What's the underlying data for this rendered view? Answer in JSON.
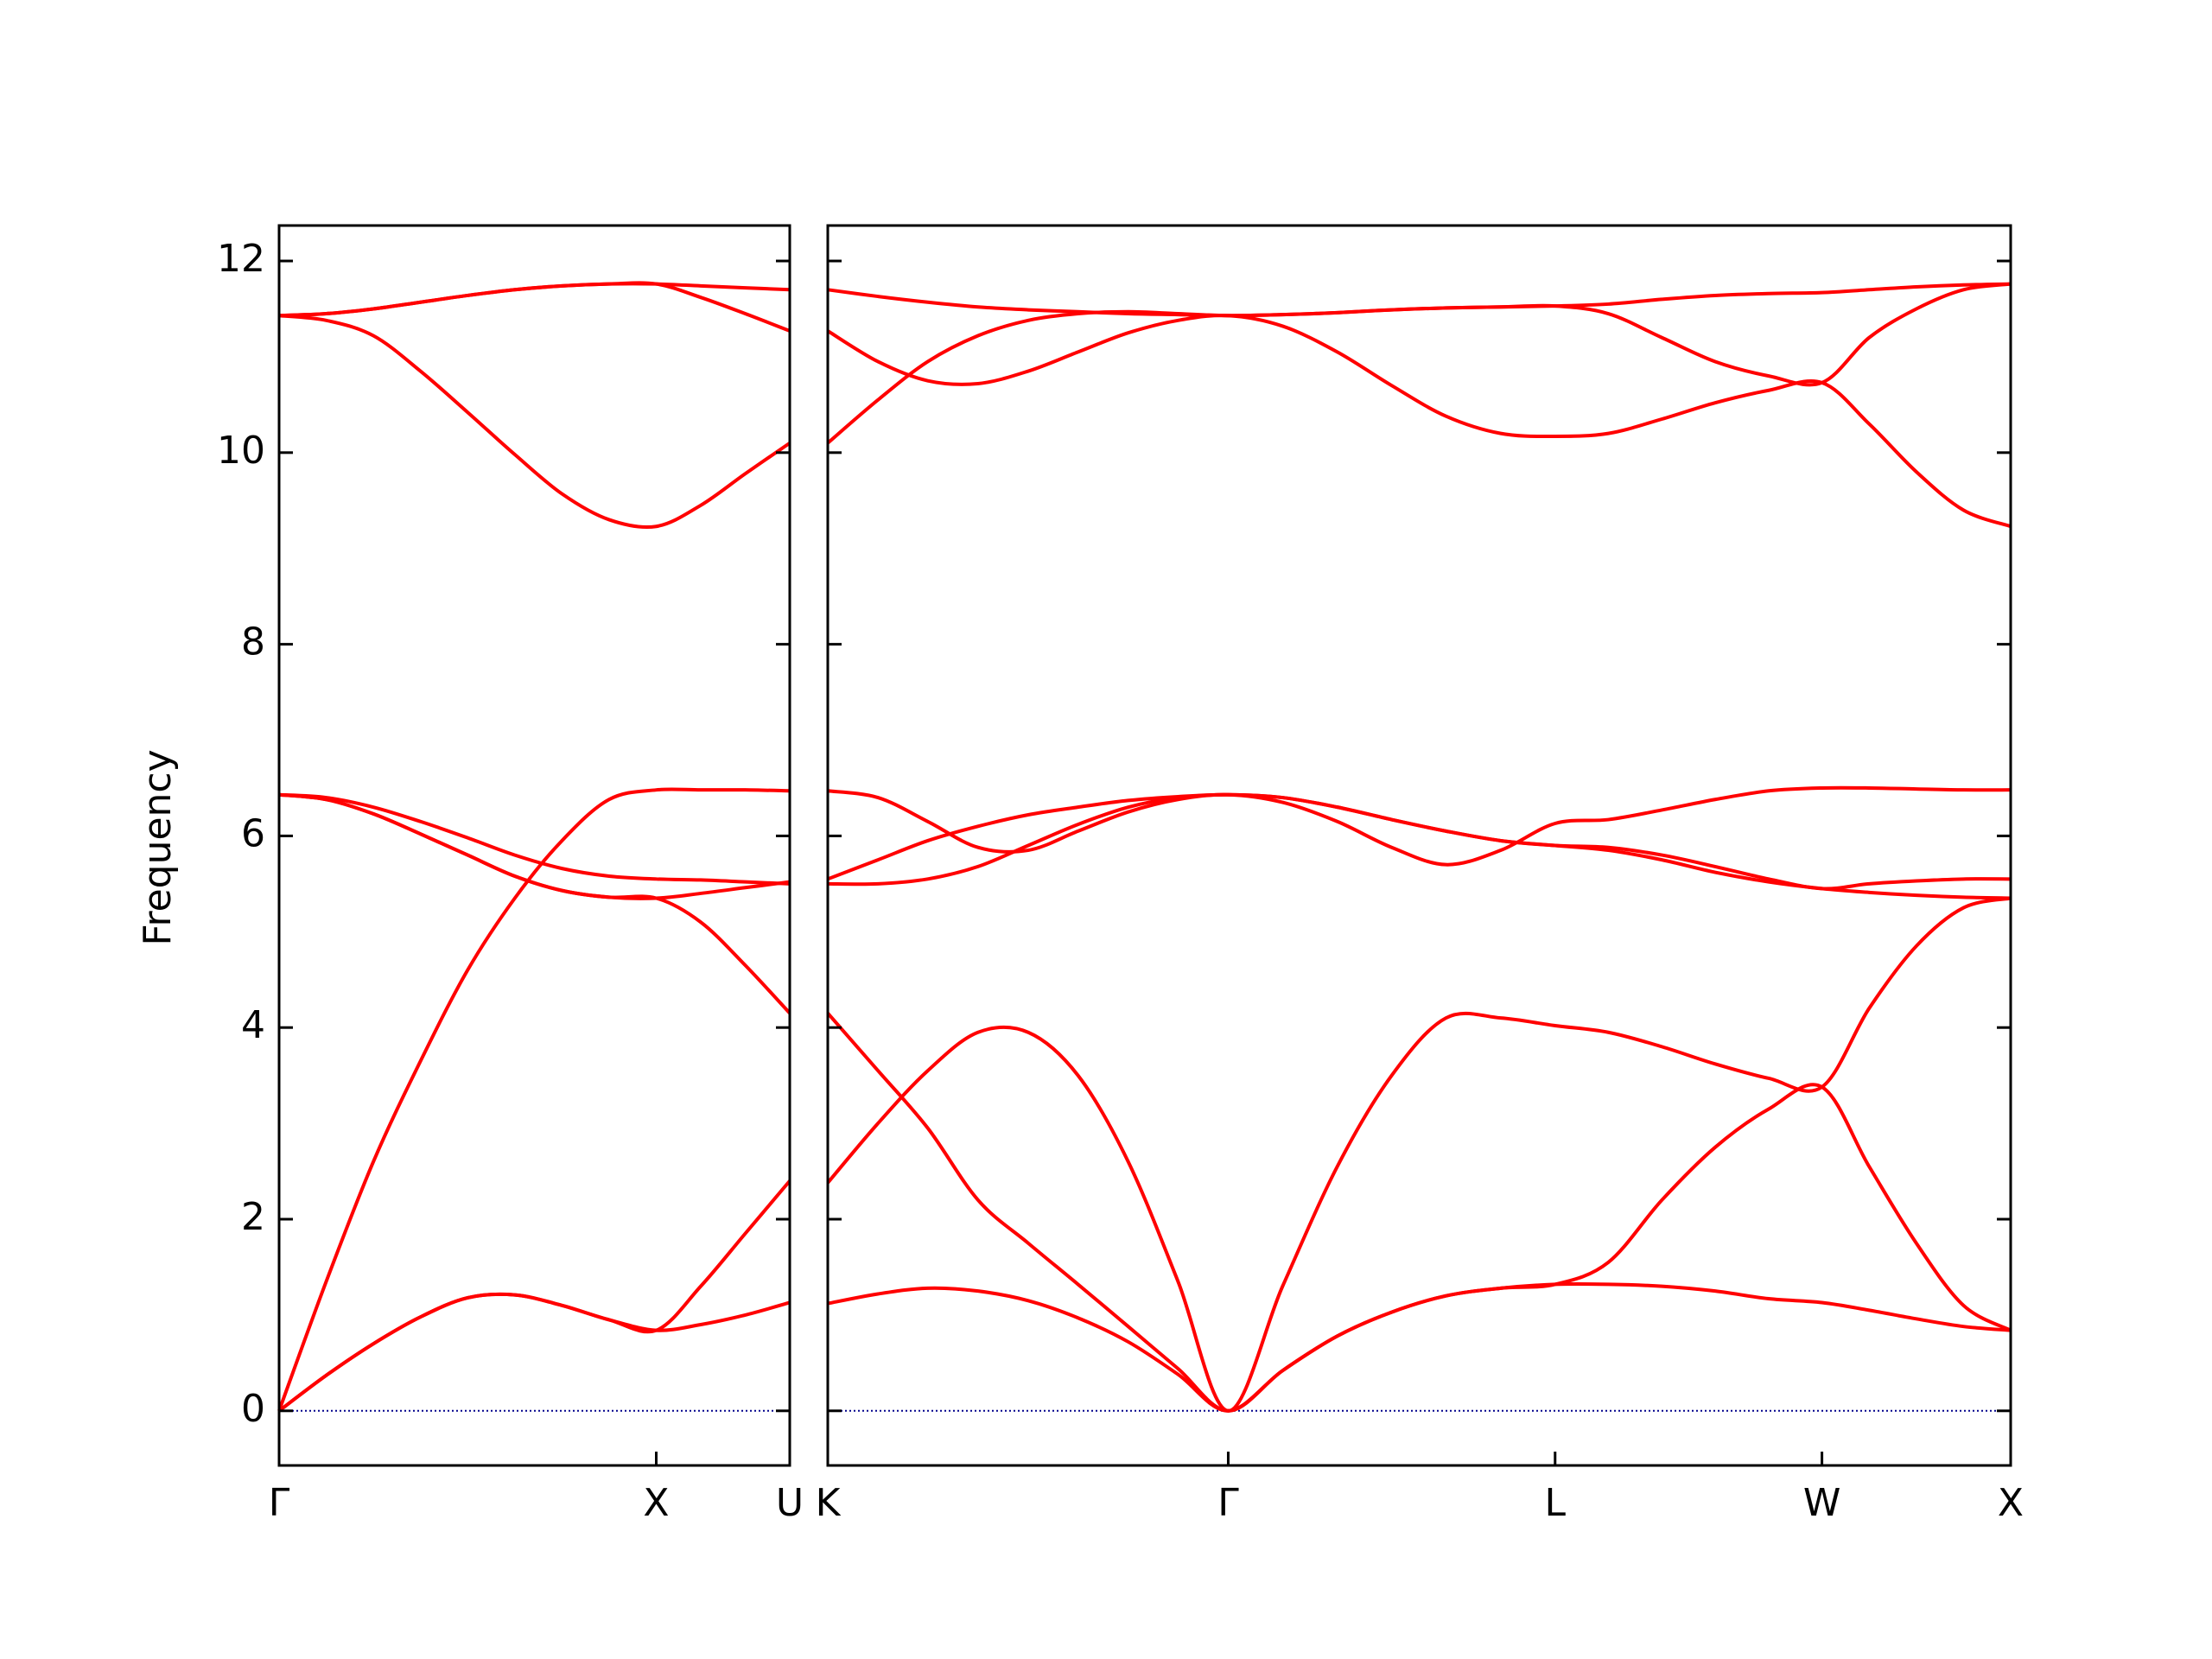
{
  "chart_data": [
    {
      "type": "line",
      "ylabel": "Frequency",
      "x": [
        0,
        0.125,
        0.25,
        0.375,
        0.5,
        0.625,
        0.75,
        0.875,
        1,
        1.118,
        1.236,
        1.354
      ],
      "xlim": [
        0,
        1.354
      ],
      "ylim": [
        -0.57,
        12.37
      ],
      "xticks": [
        {
          "value": 0,
          "label": "Γ"
        },
        {
          "value": 1,
          "label": "X"
        },
        {
          "value": 1.354,
          "label": "U"
        }
      ],
      "yticks": [
        0,
        2,
        4,
        6,
        8,
        10,
        12
      ],
      "show_ytick_labels": true,
      "hline": 0,
      "hline_color": "#00008b",
      "series": [
        {
          "color": "#ff0000",
          "values": [
            0,
            0.37,
            0.7,
            0.98,
            1.18,
            1.21,
            1.1,
            0.95,
            0.84,
            0.9,
            1.0,
            1.13
          ]
        },
        {
          "color": "#ff0000",
          "values": [
            0,
            0.37,
            0.7,
            0.98,
            1.18,
            1.21,
            1.1,
            0.95,
            0.84,
            1.3,
            1.85,
            2.4
          ]
        },
        {
          "color": "#ff0000",
          "values": [
            0,
            1.35,
            2.6,
            3.65,
            4.6,
            5.35,
            5.95,
            6.38,
            6.48,
            6.48,
            6.48,
            6.47
          ]
        },
        {
          "color": "#ff0000",
          "values": [
            6.43,
            6.38,
            6.23,
            6.02,
            5.8,
            5.58,
            5.43,
            5.36,
            5.35,
            5.1,
            4.65,
            4.15
          ]
        },
        {
          "color": "#ff0000",
          "values": [
            6.43,
            6.38,
            6.23,
            6.02,
            5.8,
            5.58,
            5.43,
            5.36,
            5.35,
            5.4,
            5.46,
            5.52
          ]
        },
        {
          "color": "#ff0000",
          "values": [
            6.43,
            6.4,
            6.3,
            6.15,
            5.98,
            5.8,
            5.66,
            5.58,
            5.55,
            5.54,
            5.52,
            5.5
          ]
        },
        {
          "color": "#ff0000",
          "values": [
            11.43,
            11.38,
            11.22,
            10.85,
            10.42,
            9.98,
            9.57,
            9.3,
            9.23,
            9.45,
            9.78,
            10.1
          ]
        },
        {
          "color": "#ff0000",
          "values": [
            11.43,
            11.45,
            11.5,
            11.57,
            11.64,
            11.7,
            11.74,
            11.76,
            11.76,
            11.74,
            11.72,
            11.7
          ]
        },
        {
          "color": "#ff0000",
          "values": [
            11.43,
            11.45,
            11.5,
            11.57,
            11.64,
            11.7,
            11.74,
            11.76,
            11.76,
            11.62,
            11.45,
            11.27
          ]
        }
      ]
    },
    {
      "type": "line",
      "x": [
        0,
        0.133,
        0.265,
        0.398,
        0.531,
        0.663,
        0.796,
        0.928,
        1.061,
        1.205,
        1.35,
        1.494,
        1.638,
        1.783,
        1.927,
        2.068,
        2.21,
        2.351,
        2.493,
        2.634,
        2.759,
        2.884,
        3.009,
        3.134
      ],
      "xlim": [
        0,
        3.134
      ],
      "ylim": [
        -0.57,
        12.37
      ],
      "xticks": [
        {
          "value": 0,
          "label": "K"
        },
        {
          "value": 1.061,
          "label": "Γ"
        },
        {
          "value": 1.927,
          "label": "L"
        },
        {
          "value": 2.634,
          "label": "W"
        },
        {
          "value": 3.134,
          "label": "X"
        }
      ],
      "yticks": [
        0,
        2,
        4,
        6,
        8,
        10,
        12
      ],
      "show_ytick_labels": false,
      "hline": 0,
      "hline_color": "#00008b",
      "series": [
        {
          "color": "#ff0000",
          "values": [
            1.12,
            1.22,
            1.28,
            1.25,
            1.15,
            0.97,
            0.72,
            0.38,
            0,
            0.42,
            0.78,
            1.03,
            1.2,
            1.28,
            1.32,
            1.32,
            1.3,
            1.25,
            1.17,
            1.13,
            1.05,
            0.96,
            0.88,
            0.84
          ]
        },
        {
          "color": "#ff0000",
          "values": [
            4.15,
            3.55,
            2.95,
            2.2,
            1.75,
            1.32,
            0.88,
            0.44,
            0,
            0.42,
            0.78,
            1.03,
            1.2,
            1.28,
            1.32,
            1.55,
            2.2,
            2.75,
            3.15,
            3.38,
            2.55,
            1.75,
            1.1,
            0.84
          ]
        },
        {
          "color": "#ff0000",
          "values": [
            2.38,
            3.0,
            3.55,
            3.95,
            3.95,
            3.5,
            2.6,
            1.35,
            0,
            1.3,
            2.55,
            3.5,
            4.1,
            4.1,
            4.02,
            3.95,
            3.8,
            3.62,
            3.47,
            3.38,
            4.2,
            4.85,
            5.25,
            5.35
          ]
        },
        {
          "color": "#ff0000",
          "values": [
            5.5,
            5.5,
            5.55,
            5.68,
            5.9,
            6.12,
            6.3,
            6.4,
            6.43,
            6.4,
            6.3,
            6.17,
            6.05,
            5.95,
            5.9,
            5.85,
            5.75,
            5.62,
            5.52,
            5.45,
            5.41,
            5.38,
            5.36,
            5.35
          ]
        },
        {
          "color": "#ff0000",
          "values": [
            5.55,
            5.75,
            5.95,
            6.1,
            6.22,
            6.3,
            6.37,
            6.41,
            6.43,
            6.4,
            6.3,
            6.17,
            6.05,
            5.95,
            5.9,
            5.88,
            5.8,
            5.68,
            5.55,
            5.45,
            5.5,
            5.53,
            5.55,
            5.55
          ]
        },
        {
          "color": "#ff0000",
          "values": [
            6.47,
            6.4,
            6.15,
            5.88,
            5.85,
            6.05,
            6.25,
            6.38,
            6.43,
            6.35,
            6.15,
            5.88,
            5.7,
            5.85,
            6.13,
            6.17,
            6.27,
            6.38,
            6.47,
            6.5,
            6.5,
            6.49,
            6.48,
            6.48
          ]
        },
        {
          "color": "#ff0000",
          "values": [
            10.1,
            10.55,
            10.95,
            11.22,
            11.38,
            11.45,
            11.47,
            11.45,
            11.43,
            11.44,
            11.46,
            11.49,
            11.51,
            11.52,
            11.53,
            11.45,
            11.2,
            10.95,
            10.8,
            10.73,
            11.2,
            11.5,
            11.7,
            11.76
          ]
        },
        {
          "color": "#ff0000",
          "values": [
            11.27,
            10.95,
            10.75,
            10.72,
            10.85,
            11.05,
            11.25,
            11.38,
            11.43,
            11.32,
            11.05,
            10.7,
            10.38,
            10.2,
            10.17,
            10.2,
            10.35,
            10.52,
            10.65,
            10.73,
            10.3,
            9.8,
            9.4,
            9.23
          ]
        },
        {
          "color": "#ff0000",
          "values": [
            11.7,
            11.63,
            11.57,
            11.52,
            11.49,
            11.47,
            11.45,
            11.44,
            11.43,
            11.44,
            11.46,
            11.49,
            11.51,
            11.52,
            11.53,
            11.55,
            11.6,
            11.64,
            11.66,
            11.67,
            11.7,
            11.73,
            11.75,
            11.76
          ]
        }
      ]
    }
  ]
}
